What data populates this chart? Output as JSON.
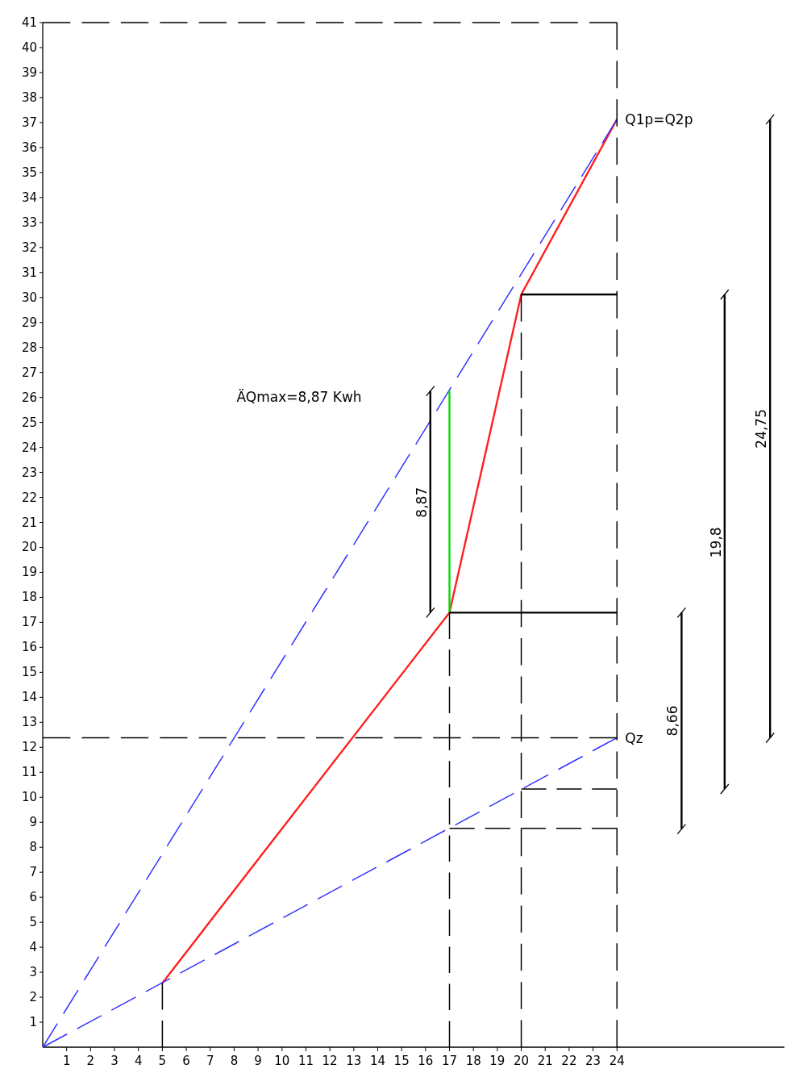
{
  "chart_data": {
    "type": "line",
    "xlim": [
      0,
      31
    ],
    "ylim": [
      0,
      41
    ],
    "xticks": [
      1,
      2,
      3,
      4,
      5,
      6,
      7,
      8,
      9,
      10,
      11,
      12,
      13,
      14,
      15,
      16,
      17,
      18,
      19,
      20,
      21,
      22,
      23,
      24
    ],
    "yticks": [
      1,
      2,
      3,
      4,
      5,
      6,
      7,
      8,
      9,
      10,
      11,
      12,
      13,
      14,
      15,
      16,
      17,
      18,
      19,
      20,
      21,
      22,
      23,
      24,
      25,
      26,
      27,
      28,
      29,
      30,
      31,
      32,
      33,
      34,
      35,
      36,
      37,
      38,
      39,
      40,
      41
    ],
    "grid": false,
    "marker": "none",
    "series": [
      {
        "color": "#ff2020",
        "line_style": "solid",
        "x": [
          5,
          17,
          20,
          24
        ],
        "values": [
          2.57,
          17.39,
          30.12,
          37.13
        ]
      },
      {
        "color": "#3333ff",
        "line_style": "dashed",
        "x": [
          0,
          24
        ],
        "values": [
          0,
          37.13
        ]
      },
      {
        "color": "#3333ff",
        "line_style": "dashed",
        "x": [
          0,
          24
        ],
        "values": [
          0,
          12.38
        ]
      },
      {
        "color": "#00dd00",
        "line_style": "solid",
        "x": [
          17,
          17
        ],
        "values": [
          17.39,
          26.26
        ]
      },
      {
        "color": "#000000",
        "line_style": "dashed",
        "x": [
          5,
          5
        ],
        "values": [
          0,
          2.57
        ]
      },
      {
        "color": "#000000",
        "line_style": "dashed",
        "x": [
          17,
          17
        ],
        "values": [
          0,
          17.39
        ]
      },
      {
        "color": "#000000",
        "line_style": "dashed",
        "x": [
          20,
          20
        ],
        "values": [
          0,
          30.12
        ]
      },
      {
        "color": "#000000",
        "line_style": "dashed",
        "x": [
          24,
          24
        ],
        "values": [
          0,
          41
        ]
      },
      {
        "color": "#000000",
        "line_style": "dashed",
        "x": [
          0,
          24
        ],
        "values": [
          41,
          41
        ]
      },
      {
        "color": "#000000",
        "line_style": "dashed",
        "x": [
          0,
          24
        ],
        "values": [
          12.38,
          12.38
        ]
      },
      {
        "color": "#000000",
        "line_style": "dashed",
        "x": [
          17,
          24
        ],
        "values": [
          8.76,
          8.76
        ]
      },
      {
        "color": "#000000",
        "line_style": "dashed",
        "x": [
          20,
          24
        ],
        "values": [
          10.33,
          10.33
        ]
      },
      {
        "color": "#000000",
        "line_style": "solid",
        "x": [
          17,
          24
        ],
        "values": [
          17.39,
          17.39
        ]
      },
      {
        "color": "#000000",
        "line_style": "solid",
        "x": [
          20,
          24
        ],
        "values": [
          30.12,
          30.12
        ]
      },
      {
        "color": "#000000",
        "line_style": "solid",
        "marker": "cross",
        "x": [
          16.2,
          16.2
        ],
        "values": [
          17.39,
          26.26
        ]
      },
      {
        "color": "#000000",
        "line_style": "solid",
        "marker": "cross",
        "x": [
          26.7,
          26.7
        ],
        "values": [
          8.73,
          17.39
        ]
      },
      {
        "color": "#000000",
        "line_style": "solid",
        "marker": "cross",
        "x": [
          28.5,
          28.5
        ],
        "values": [
          10.33,
          30.12
        ]
      },
      {
        "color": "#000000",
        "line_style": "solid",
        "marker": "cross",
        "x": [
          30.4,
          30.4
        ],
        "values": [
          12.38,
          37.13
        ]
      }
    ],
    "annotations": [
      "ÄQmax=8,87 Kwh",
      {
        "text": "Q1p=Q2p",
        "x": 24,
        "y": 37.13
      },
      {
        "text": "Qz",
        "x": 24,
        "y": 12.38
      },
      {
        "text": "8,87",
        "x": 16.2,
        "y": 21.8
      },
      {
        "text": "8,66",
        "x": 26.7,
        "y": 13.06
      },
      {
        "text": "19,8",
        "x": 28.5,
        "y": 20.2
      },
      {
        "text": "24,75",
        "x": 30.4,
        "y": 24.75
      }
    ]
  }
}
